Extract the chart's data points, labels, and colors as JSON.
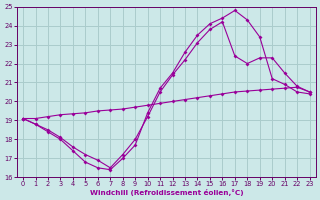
{
  "xlabel": "Windchill (Refroidissement éolien,°C)",
  "bg_color": "#cce8e8",
  "grid_color": "#aacccc",
  "line_color": "#990099",
  "xlim": [
    -0.5,
    23.5
  ],
  "ylim": [
    16,
    25
  ],
  "xticks": [
    0,
    1,
    2,
    3,
    4,
    5,
    6,
    7,
    8,
    9,
    10,
    11,
    12,
    13,
    14,
    15,
    16,
    17,
    18,
    19,
    20,
    21,
    22,
    23
  ],
  "yticks": [
    16,
    17,
    18,
    19,
    20,
    21,
    22,
    23,
    24,
    25
  ],
  "line1_x": [
    0,
    1,
    2,
    3,
    4,
    5,
    6,
    7,
    8,
    9,
    10,
    11,
    12,
    13,
    14,
    15,
    16,
    17,
    18,
    19,
    20,
    21,
    22,
    23
  ],
  "line1_y": [
    19.1,
    19.1,
    19.2,
    19.3,
    19.35,
    19.4,
    19.5,
    19.55,
    19.6,
    19.7,
    19.8,
    19.9,
    20.0,
    20.1,
    20.2,
    20.3,
    20.4,
    20.5,
    20.55,
    20.6,
    20.65,
    20.7,
    20.75,
    20.5
  ],
  "line2_x": [
    0,
    1,
    2,
    3,
    4,
    5,
    6,
    7,
    8,
    9,
    10,
    11,
    12,
    13,
    14,
    15,
    16,
    17,
    18,
    19,
    20,
    21,
    22,
    23
  ],
  "line2_y": [
    19.1,
    18.8,
    18.5,
    18.1,
    17.6,
    17.2,
    16.9,
    16.5,
    17.2,
    18.0,
    19.2,
    20.5,
    21.4,
    22.2,
    23.1,
    23.8,
    24.2,
    22.4,
    22.0,
    22.3,
    22.3,
    21.5,
    20.8,
    20.5
  ],
  "line3_x": [
    0,
    1,
    2,
    3,
    4,
    5,
    6,
    7,
    8,
    9,
    10,
    11,
    12,
    13,
    14,
    15,
    16,
    17,
    18,
    19,
    20,
    21,
    22,
    23
  ],
  "line3_y": [
    19.1,
    18.8,
    18.4,
    18.0,
    17.4,
    16.8,
    16.5,
    16.4,
    17.0,
    17.7,
    19.4,
    20.7,
    21.5,
    22.6,
    23.5,
    24.1,
    24.4,
    24.8,
    24.3,
    23.4,
    21.2,
    20.9,
    20.5,
    20.4
  ]
}
